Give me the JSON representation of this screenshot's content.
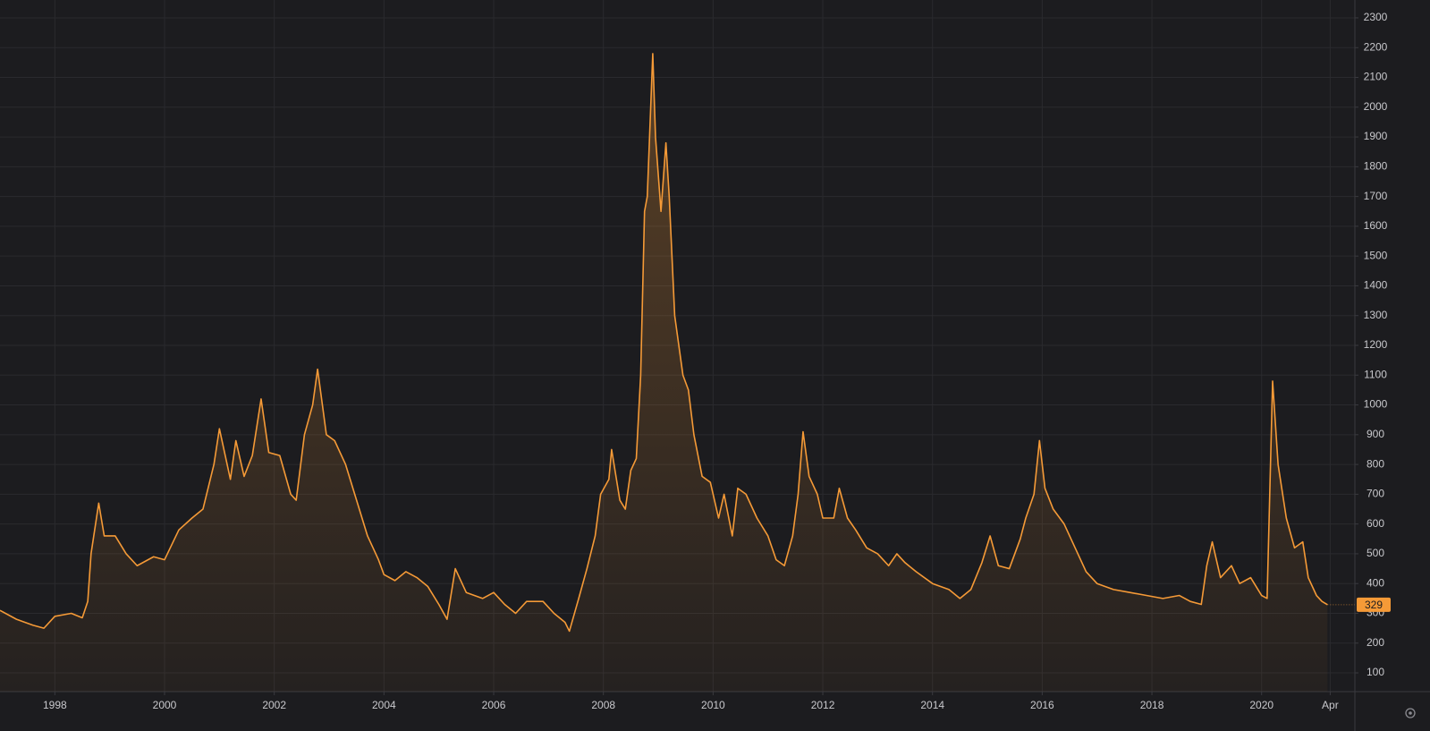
{
  "chart_data": {
    "type": "area",
    "color": "#f59a37",
    "grid": true,
    "x": [
      1997.0,
      1997.3,
      1997.6,
      1997.8,
      1998.0,
      1998.3,
      1998.5,
      1998.6,
      1998.66,
      1998.8,
      1998.9,
      1999.1,
      1999.3,
      1999.5,
      1999.8,
      2000.0,
      2000.26,
      2000.5,
      2000.7,
      2000.9,
      2001.0,
      2001.2,
      2001.3,
      2001.45,
      2001.6,
      2001.76,
      2001.9,
      2002.1,
      2002.3,
      2002.4,
      2002.55,
      2002.7,
      2002.79,
      2002.95,
      2003.1,
      2003.3,
      2003.5,
      2003.7,
      2003.9,
      2004.0,
      2004.2,
      2004.4,
      2004.6,
      2004.8,
      2005.0,
      2005.15,
      2005.3,
      2005.5,
      2005.8,
      2006.0,
      2006.2,
      2006.4,
      2006.6,
      2006.9,
      2007.1,
      2007.3,
      2007.38,
      2007.55,
      2007.7,
      2007.85,
      2007.95,
      2008.1,
      2008.15,
      2008.3,
      2008.4,
      2008.5,
      2008.6,
      2008.68,
      2008.75,
      2008.8,
      2008.9,
      2008.95,
      2009.05,
      2009.14,
      2009.2,
      2009.3,
      2009.45,
      2009.55,
      2009.65,
      2009.8,
      2009.95,
      2010.1,
      2010.2,
      2010.35,
      2010.45,
      2010.6,
      2010.8,
      2011.0,
      2011.15,
      2011.3,
      2011.45,
      2011.55,
      2011.64,
      2011.75,
      2011.9,
      2012.0,
      2012.2,
      2012.3,
      2012.45,
      2012.6,
      2012.8,
      2013.0,
      2013.2,
      2013.35,
      2013.5,
      2013.7,
      2014.0,
      2014.3,
      2014.5,
      2014.7,
      2014.9,
      2015.05,
      2015.2,
      2015.4,
      2015.6,
      2015.7,
      2015.85,
      2015.95,
      2016.05,
      2016.2,
      2016.4,
      2016.6,
      2016.8,
      2017.0,
      2017.3,
      2017.6,
      2017.9,
      2018.2,
      2018.5,
      2018.7,
      2018.9,
      2019.0,
      2019.1,
      2019.25,
      2019.45,
      2019.6,
      2019.8,
      2020.0,
      2020.1,
      2020.2,
      2020.3,
      2020.45,
      2020.6,
      2020.75,
      2020.85,
      2021.0,
      2021.1,
      2021.2
    ],
    "values": [
      310,
      280,
      260,
      250,
      290,
      300,
      285,
      340,
      500,
      670,
      560,
      560,
      500,
      460,
      490,
      480,
      580,
      620,
      650,
      800,
      920,
      750,
      880,
      760,
      830,
      1020,
      840,
      830,
      700,
      680,
      900,
      1000,
      1120,
      900,
      880,
      800,
      680,
      560,
      480,
      430,
      410,
      440,
      420,
      390,
      330,
      280,
      450,
      370,
      350,
      370,
      330,
      300,
      340,
      340,
      300,
      270,
      240,
      350,
      450,
      560,
      700,
      750,
      850,
      680,
      650,
      780,
      820,
      1100,
      1650,
      1700,
      2180,
      1900,
      1650,
      1880,
      1700,
      1300,
      1100,
      1050,
      900,
      760,
      740,
      620,
      700,
      560,
      720,
      700,
      620,
      560,
      480,
      460,
      560,
      700,
      910,
      760,
      700,
      620,
      620,
      720,
      620,
      580,
      520,
      500,
      460,
      500,
      470,
      440,
      400,
      380,
      350,
      380,
      470,
      560,
      460,
      450,
      550,
      620,
      700,
      880,
      720,
      650,
      600,
      520,
      440,
      400,
      380,
      370,
      360,
      350,
      360,
      340,
      330,
      460,
      540,
      420,
      460,
      400,
      420,
      360,
      350,
      1080,
      800,
      620,
      520,
      540,
      420,
      360,
      340,
      329
    ],
    "xlim": [
      1997.0,
      2021.7
    ],
    "xticks": [
      1998,
      2000,
      2002,
      2004,
      2006,
      2008,
      2010,
      2012,
      2014,
      2016,
      2018,
      2020,
      {
        "value": 2021.25,
        "label": "Apr"
      }
    ],
    "ylim": [
      37,
      2360
    ],
    "yticks": [
      100,
      200,
      300,
      400,
      500,
      600,
      700,
      800,
      900,
      1000,
      1100,
      1200,
      1300,
      1400,
      1500,
      1600,
      1700,
      1800,
      1900,
      2000,
      2100,
      2200,
      2300
    ]
  }
}
